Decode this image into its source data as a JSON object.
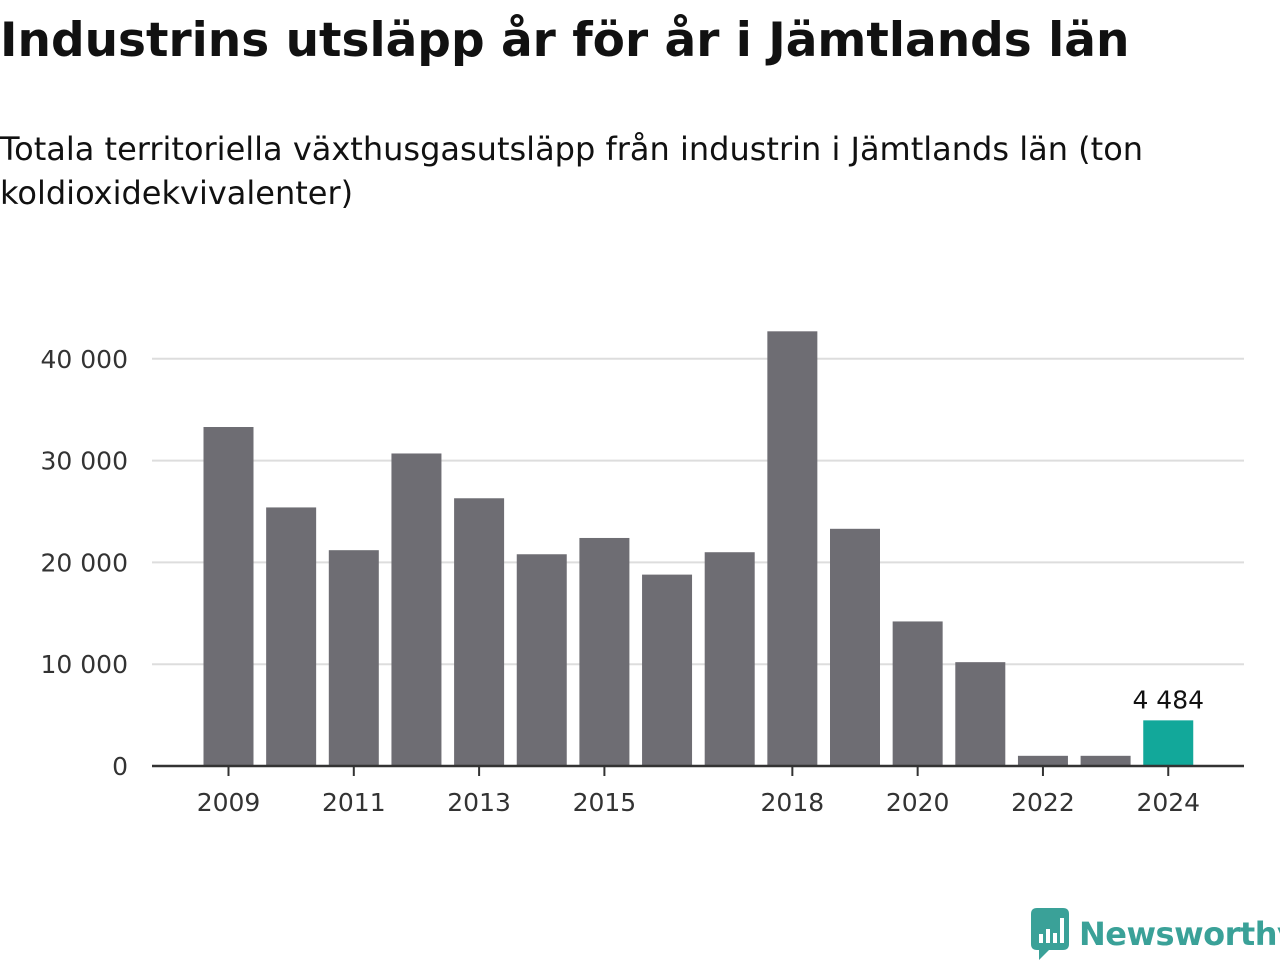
{
  "colors": {
    "bar_default": "#6e6d73",
    "bar_highlight": "#12a89a",
    "gridline": "#dddddd",
    "axis": "#333333",
    "brand": "#3aa198"
  },
  "logo": {
    "text": "Newsworthy",
    "icon": "newsworthy-logo-icon"
  },
  "chart_data": {
    "type": "bar",
    "title": "Industrins utsläpp år för år i Jämtlands län",
    "subtitle": "Totala territoriella växthusgasutsläpp från industrin i Jämtlands län (ton koldioxidekvivalenter)",
    "xlabel": "",
    "ylabel": "",
    "categories": [
      "2009",
      "2010",
      "2011",
      "2012",
      "2013",
      "2014",
      "2015",
      "2016",
      "2017",
      "2018",
      "2019",
      "2020",
      "2021",
      "2022",
      "2023",
      "2024"
    ],
    "values": [
      33300,
      25400,
      21200,
      30700,
      26300,
      20800,
      22400,
      18800,
      21000,
      42700,
      23300,
      14200,
      10200,
      1000,
      1000,
      4484
    ],
    "highlight_index": 15,
    "data_labels": [
      {
        "index": 15,
        "text": "4 484"
      }
    ],
    "ylim": [
      0,
      45000
    ],
    "yticks": [
      0,
      10000,
      20000,
      30000,
      40000
    ],
    "ytick_labels": [
      "0",
      "10 000",
      "20 000",
      "30 000",
      "40 000"
    ],
    "xtick_labels": [
      "2009",
      "2011",
      "2013",
      "2015",
      "2018",
      "2020",
      "2022",
      "2024"
    ],
    "grid": true,
    "legend": "none"
  }
}
